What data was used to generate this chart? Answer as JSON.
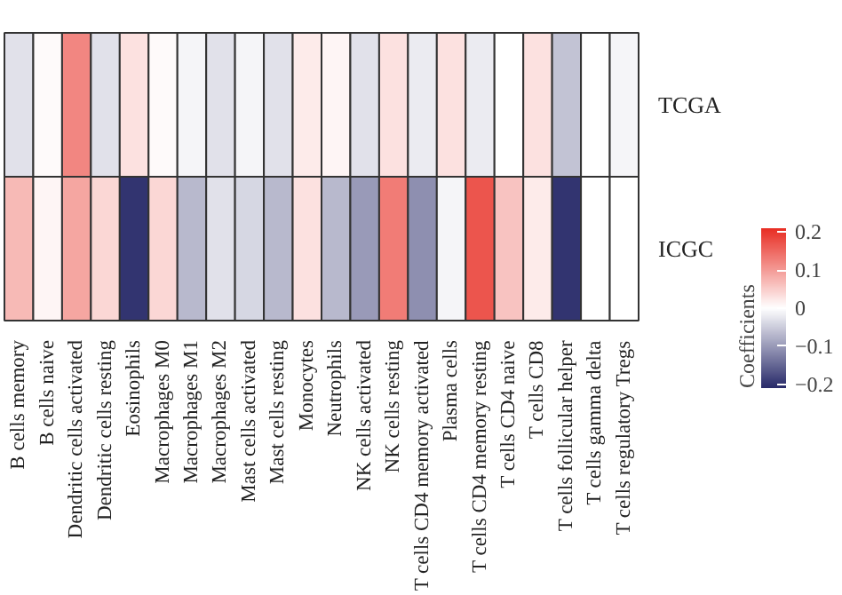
{
  "chart_data": {
    "type": "heatmap",
    "clabel": "Coefficients",
    "categories": [
      "B cells memory",
      "B cells naive",
      "Dendritic cells activated",
      "Dendritic cells resting",
      "Eosinophils",
      "Macrophages M0",
      "Macrophages M1",
      "Macrophages M2",
      "Mast cells activated",
      "Mast cells resting",
      "Monocytes",
      "Neutrophils",
      "NK cells activated",
      "NK cells resting",
      "T cells CD4 memory activated",
      "Plasma cells",
      "T cells CD4 memory resting",
      "T cells CD4 naive",
      "T cells CD8",
      "T cells follicular helper",
      "T cells gamma delta",
      "T cells regulatory Tregs"
    ],
    "y_categories": [
      "TCGA",
      "ICGC"
    ],
    "cells": [
      [
        -0.03,
        0.005,
        0.12,
        -0.03,
        0.03,
        0.005,
        -0.01,
        -0.03,
        -0.01,
        -0.03,
        0.02,
        0.01,
        -0.03,
        0.03,
        -0.02,
        0.03,
        -0.02,
        0,
        0.03,
        -0.06,
        0,
        -0.01
      ],
      [
        0.07,
        0.01,
        0.09,
        0.04,
        -0.2,
        0.04,
        -0.07,
        -0.03,
        -0.04,
        -0.07,
        0.03,
        -0.07,
        -0.1,
        0.13,
        -0.11,
        -0.01,
        0.17,
        0.06,
        0.02,
        -0.2,
        0,
        0
      ]
    ],
    "clim": [
      -0.21,
      0.21
    ],
    "cticks": [
      -0.2,
      -0.1,
      0,
      0.1,
      0.2
    ]
  }
}
